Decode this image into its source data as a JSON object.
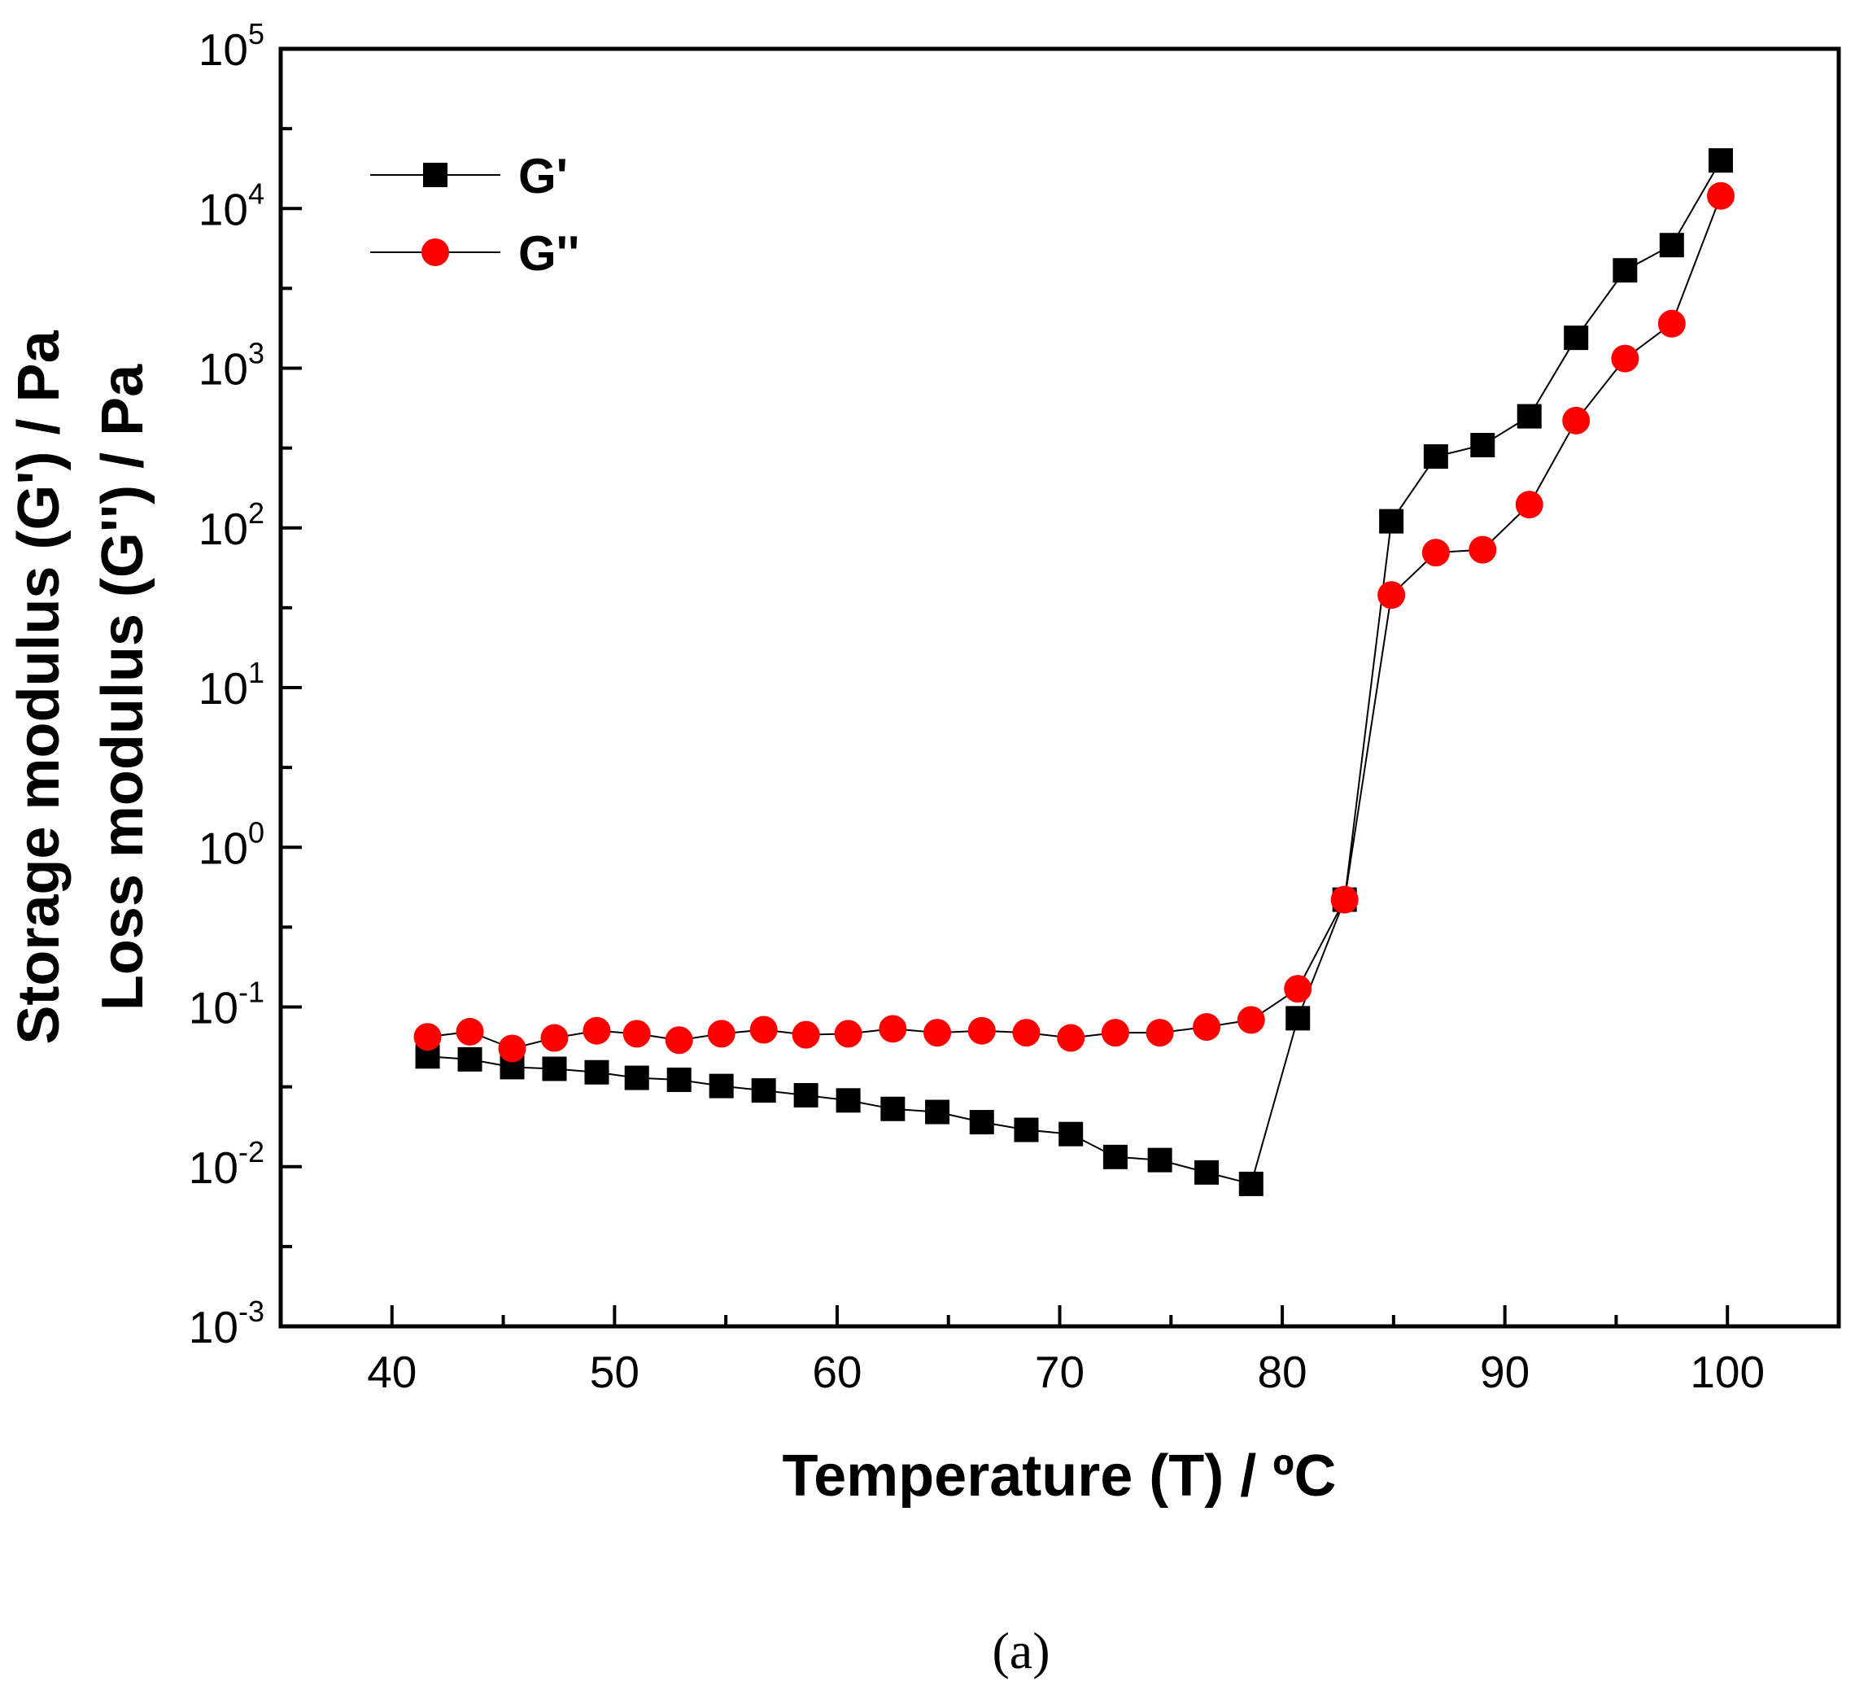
{
  "chart_data": {
    "type": "scatter",
    "title": "",
    "xlabel": "Temperature (T) / ºC",
    "ylabel": [
      "Storage modulus (G') / Pa",
      "Loss modulus (G'') / Pa"
    ],
    "xlim": [
      35,
      105
    ],
    "ylim": [
      0.001,
      100000
    ],
    "yscale": "log",
    "x_ticks": [
      40,
      50,
      60,
      70,
      80,
      90,
      100
    ],
    "x_tick_labels": [
      "40",
      "50",
      "60",
      "70",
      "80",
      "90",
      "100"
    ],
    "y_ticks": [
      {
        "base": "10",
        "exp": "-3",
        "value": 0.001
      },
      {
        "base": "10",
        "exp": "-2",
        "value": 0.01
      },
      {
        "base": "10",
        "exp": "-1",
        "value": 0.1
      },
      {
        "base": "10",
        "exp": "0",
        "value": 1
      },
      {
        "base": "10",
        "exp": "1",
        "value": 10
      },
      {
        "base": "10",
        "exp": "2",
        "value": 100
      },
      {
        "base": "10",
        "exp": "3",
        "value": 1000
      },
      {
        "base": "10",
        "exp": "4",
        "value": 10000
      },
      {
        "base": "10",
        "exp": "5",
        "value": 100000
      }
    ],
    "legend_position": "top-left",
    "series": [
      {
        "name": "G'",
        "marker": "square",
        "color": "#000000",
        "x": [
          41.6,
          43.5,
          45.4,
          47.3,
          49.2,
          51.0,
          52.9,
          54.8,
          56.7,
          58.6,
          60.5,
          62.5,
          64.5,
          66.5,
          68.5,
          70.5,
          72.5,
          74.5,
          76.6,
          78.6,
          80.7,
          82.8,
          84.9,
          86.9,
          89.0,
          91.1,
          93.2,
          95.4,
          97.5,
          99.7
        ],
        "y": [
          0.049,
          0.047,
          0.042,
          0.041,
          0.039,
          0.036,
          0.035,
          0.032,
          0.03,
          0.028,
          0.026,
          0.023,
          0.022,
          0.019,
          0.017,
          0.016,
          0.0115,
          0.011,
          0.0092,
          0.0078,
          0.085,
          0.47,
          110,
          280,
          330,
          500,
          1550,
          4100,
          5900,
          20000
        ]
      },
      {
        "name": "G''",
        "marker": "circle",
        "color": "#ff0000",
        "x": [
          41.6,
          43.5,
          45.4,
          47.3,
          49.2,
          51.0,
          52.9,
          54.8,
          56.7,
          58.6,
          60.5,
          62.5,
          64.5,
          66.5,
          68.5,
          70.5,
          72.5,
          74.5,
          76.6,
          78.6,
          80.7,
          82.8,
          84.9,
          86.9,
          89.0,
          91.1,
          93.2,
          95.4,
          97.5,
          99.7
        ],
        "y": [
          0.065,
          0.07,
          0.055,
          0.064,
          0.071,
          0.068,
          0.062,
          0.068,
          0.072,
          0.067,
          0.068,
          0.073,
          0.069,
          0.071,
          0.069,
          0.064,
          0.069,
          0.069,
          0.075,
          0.083,
          0.13,
          0.47,
          38,
          70,
          73,
          140,
          470,
          1150,
          1900,
          12000
        ]
      }
    ]
  },
  "caption": "(a)"
}
